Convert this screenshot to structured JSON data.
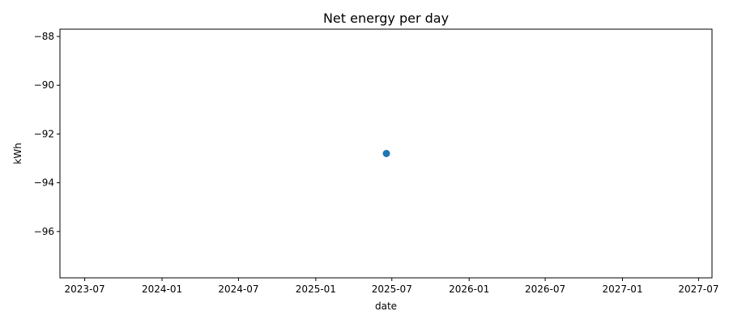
{
  "chart_data": {
    "type": "scatter",
    "title": "Net energy per day",
    "xlabel": "date",
    "ylabel": "kWh",
    "x_type": "date",
    "xlim": [
      "2023-05-03",
      "2027-08-02"
    ],
    "ylim": [
      -97.9,
      -87.7
    ],
    "x_ticks": [
      "2023-07",
      "2024-01",
      "2024-07",
      "2025-01",
      "2025-07",
      "2026-01",
      "2026-07",
      "2027-01",
      "2027-07"
    ],
    "y_ticks": [
      -88,
      -90,
      -92,
      -94,
      -96
    ],
    "y_tick_labels": [
      "−88",
      "−90",
      "−92",
      "−94",
      "−96"
    ],
    "grid": false,
    "legend": "none",
    "series": [
      {
        "color": "#1f77b4",
        "points": [
          {
            "x": "2025-06-18",
            "y": -92.8
          }
        ]
      }
    ]
  }
}
